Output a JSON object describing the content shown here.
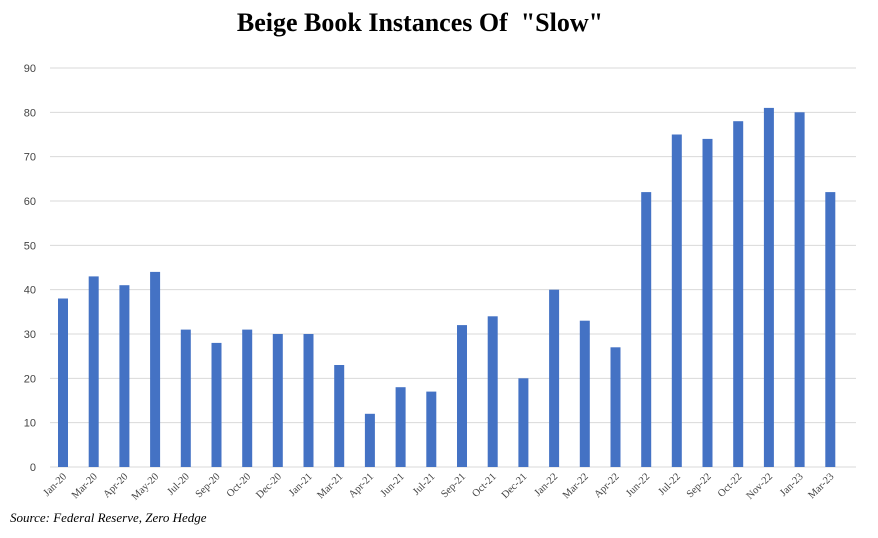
{
  "chart_data": {
    "type": "bar",
    "title": "Beige Book Instances Of  \"Slow\"",
    "source": "Source: Federal Reserve, Zero Hedge",
    "xlabel": "",
    "ylabel": "",
    "ylim": [
      0,
      90
    ],
    "yticks": [
      "0",
      "10",
      "20",
      "30",
      "40",
      "50",
      "60",
      "70",
      "80",
      "90"
    ],
    "grid": true,
    "legend": "none",
    "bar_color": "#4472C4",
    "gridline_color": "#d9d9d9",
    "categories": [
      "Jan-20",
      "Mar-20",
      "Apr-20",
      "May-20",
      "Jul-20",
      "Sep-20",
      "Oct-20",
      "Dec-20",
      "Jan-21",
      "Mar-21",
      "Apr-21",
      "Jun-21",
      "Jul-21",
      "Sep-21",
      "Oct-21",
      "Dec-21",
      "Jan-22",
      "Mar-22",
      "Apr-22",
      "Jun-22",
      "Jul-22",
      "Sep-22",
      "Oct-22",
      "Nov-22",
      "Jan-23",
      "Mar-23"
    ],
    "values": [
      38,
      43,
      41,
      44,
      31,
      28,
      31,
      30,
      30,
      23,
      12,
      18,
      17,
      32,
      34,
      20,
      40,
      33,
      27,
      62,
      75,
      74,
      78,
      81,
      80,
      62
    ]
  }
}
